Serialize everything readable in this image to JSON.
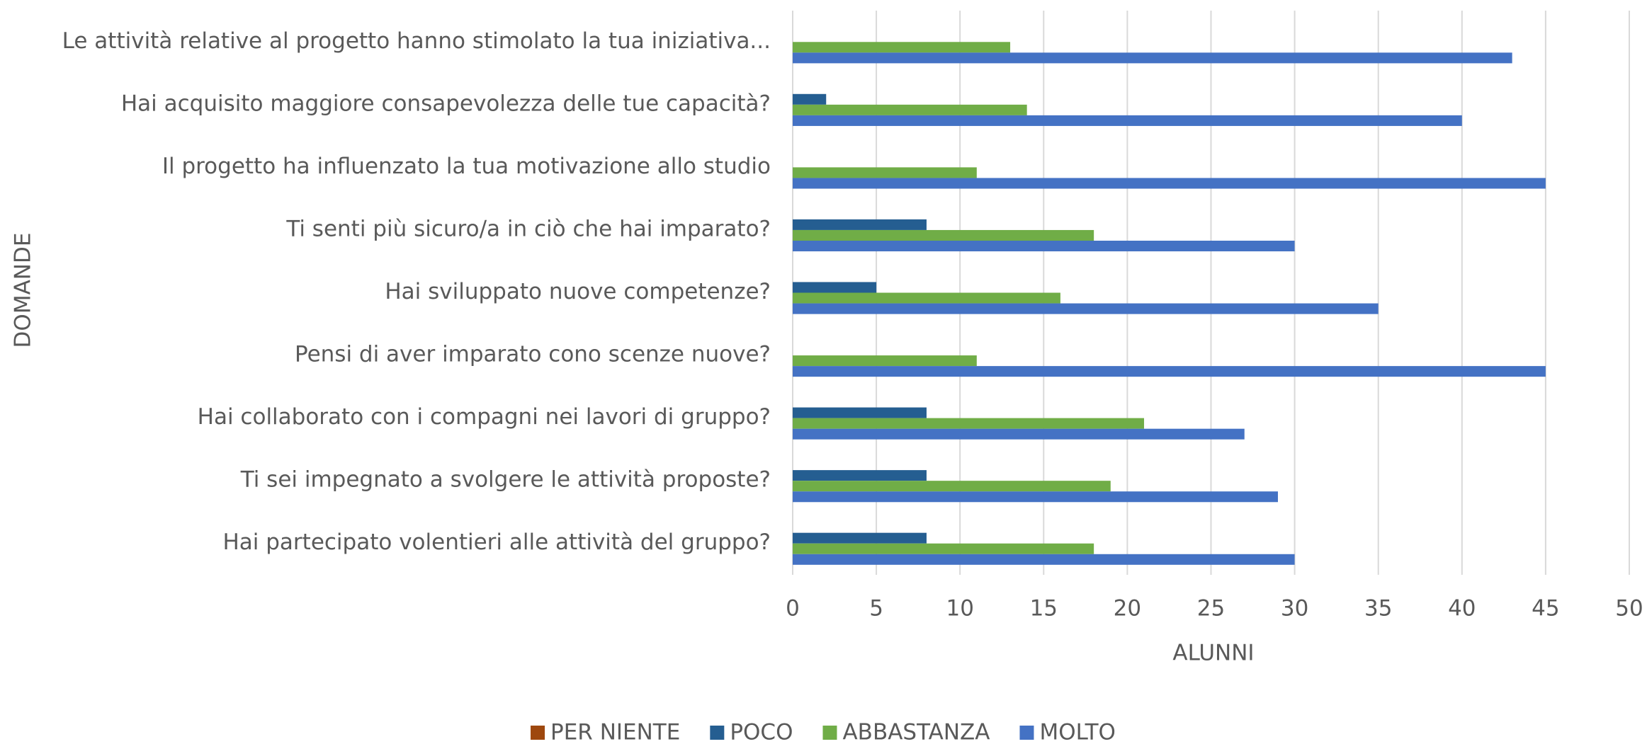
{
  "chart_data": {
    "type": "barh",
    "categories": [
      "Le attività relative al progetto hanno stimolato la tua iniziativa...",
      "Hai acquisito maggiore consapevolezza delle tue capacità?",
      "Il progetto ha influenzato la tua motivazione allo studio",
      "Ti senti più sicuro/a in ciò che hai imparato?",
      "Hai sviluppato nuove competenze?",
      "Pensi di aver imparato cono scenze nuove?",
      "Hai collaborato con i compagni nei lavori di gruppo?",
      "Ti sei impegnato a svolgere le attività proposte?",
      "Hai partecipato volentieri alle attività del gruppo?"
    ],
    "series": [
      {
        "name": "PER NIENTE",
        "color": "#9e480e",
        "values": [
          0,
          0,
          0,
          0,
          0,
          0,
          0,
          0,
          0
        ]
      },
      {
        "name": "POCO",
        "color": "#255e91",
        "values": [
          0,
          2,
          0,
          8,
          5,
          0,
          8,
          8,
          8
        ]
      },
      {
        "name": "ABBASTANZA",
        "color": "#70ad47",
        "values": [
          13,
          14,
          11,
          18,
          16,
          11,
          21,
          19,
          18
        ]
      },
      {
        "name": "MOLTO",
        "color": "#4472c4",
        "values": [
          43,
          40,
          45,
          30,
          35,
          45,
          27,
          29,
          30
        ]
      }
    ],
    "xlabel": "ALUNNI",
    "ylabel": "DOMANDE",
    "xlim": [
      0,
      50
    ],
    "xticks": [
      0,
      5,
      10,
      15,
      20,
      25,
      30,
      35,
      40,
      45,
      50
    ],
    "grid": true,
    "legend": "bottom"
  }
}
